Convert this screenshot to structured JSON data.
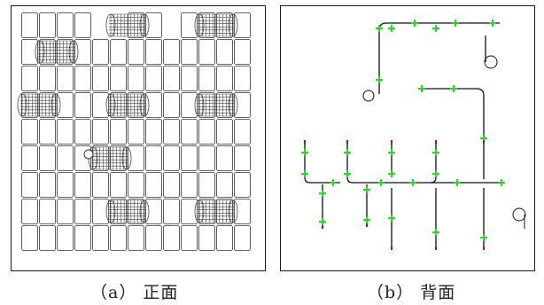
{
  "captions": {
    "a": "（a） 正面",
    "b": "（b） 背面"
  },
  "colors": {
    "frame": "#1a1a1a",
    "cell_stroke": "#333333",
    "mesh": "#444444",
    "wire": "#111111",
    "marker_green": "#22dd22",
    "marker_red": "#aa1111"
  },
  "front_grid": {
    "columns": 10,
    "rows": 9,
    "empty_cells": [
      [
        0,
        4
      ],
      [
        0,
        5
      ],
      [
        0,
        8
      ],
      [
        1,
        0
      ],
      [
        1,
        3
      ],
      [
        1,
        7
      ],
      [
        1,
        8
      ],
      [
        1,
        9
      ],
      [
        2,
        0
      ],
      [
        2,
        1
      ],
      [
        2,
        2
      ],
      [
        2,
        3
      ],
      [
        2,
        4
      ],
      [
        2,
        5
      ],
      [
        2,
        6
      ],
      [
        2,
        7
      ],
      [
        2,
        8
      ],
      [
        2,
        9
      ]
    ],
    "mesh_blocks": [
      [
        0,
        5
      ],
      [
        0,
        10
      ],
      [
        1,
        1
      ],
      [
        3,
        0
      ],
      [
        3,
        5
      ],
      [
        3,
        10
      ],
      [
        5,
        4
      ],
      [
        7,
        5
      ],
      [
        7,
        10
      ]
    ],
    "circle_cell": [
      5,
      3
    ]
  },
  "back_wiring": {
    "icons": [
      "coil-icon",
      "coil-icon",
      "circle-icon"
    ]
  }
}
